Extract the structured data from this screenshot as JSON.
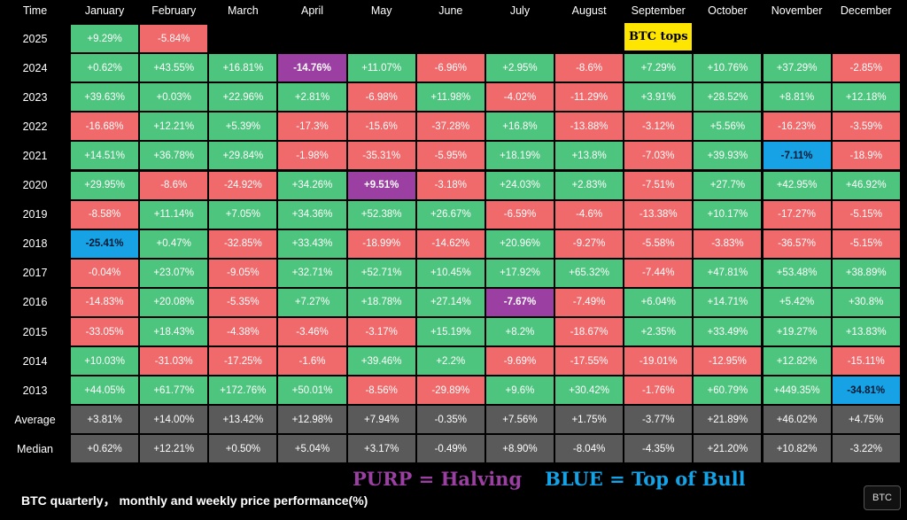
{
  "chart_data": {
    "type": "table",
    "title": "BTC quarterly， monthly and weekly price performance(%)",
    "corner_label": "Time",
    "columns": [
      "January",
      "February",
      "March",
      "April",
      "May",
      "June",
      "July",
      "August",
      "September",
      "October",
      "November",
      "December"
    ],
    "rows": [
      {
        "label": "2025",
        "cells": [
          {
            "v": "+9.29%"
          },
          {
            "v": "-5.84%"
          },
          null,
          null,
          null,
          null,
          null,
          null,
          null,
          null,
          null,
          null
        ]
      },
      {
        "label": "2024",
        "cells": [
          {
            "v": "+0.62%"
          },
          {
            "v": "+43.55%"
          },
          {
            "v": "+16.81%"
          },
          {
            "v": "-14.76%",
            "hl": "purple"
          },
          {
            "v": "+11.07%"
          },
          {
            "v": "-6.96%"
          },
          {
            "v": "+2.95%"
          },
          {
            "v": "-8.6%"
          },
          {
            "v": "+7.29%"
          },
          {
            "v": "+10.76%"
          },
          {
            "v": "+37.29%"
          },
          {
            "v": "-2.85%"
          }
        ]
      },
      {
        "label": "2023",
        "cells": [
          {
            "v": "+39.63%"
          },
          {
            "v": "+0.03%"
          },
          {
            "v": "+22.96%"
          },
          {
            "v": "+2.81%"
          },
          {
            "v": "-6.98%"
          },
          {
            "v": "+11.98%"
          },
          {
            "v": "-4.02%"
          },
          {
            "v": "-11.29%"
          },
          {
            "v": "+3.91%"
          },
          {
            "v": "+28.52%"
          },
          {
            "v": "+8.81%"
          },
          {
            "v": "+12.18%"
          }
        ]
      },
      {
        "label": "2022",
        "cells": [
          {
            "v": "-16.68%"
          },
          {
            "v": "+12.21%"
          },
          {
            "v": "+5.39%"
          },
          {
            "v": "-17.3%"
          },
          {
            "v": "-15.6%"
          },
          {
            "v": "-37.28%"
          },
          {
            "v": "+16.8%"
          },
          {
            "v": "-13.88%"
          },
          {
            "v": "-3.12%"
          },
          {
            "v": "+5.56%"
          },
          {
            "v": "-16.23%"
          },
          {
            "v": "-3.59%"
          }
        ]
      },
      {
        "label": "2021",
        "cells": [
          {
            "v": "+14.51%"
          },
          {
            "v": "+36.78%"
          },
          {
            "v": "+29.84%"
          },
          {
            "v": "-1.98%"
          },
          {
            "v": "-35.31%"
          },
          {
            "v": "-5.95%"
          },
          {
            "v": "+18.19%"
          },
          {
            "v": "+13.8%"
          },
          {
            "v": "-7.03%"
          },
          {
            "v": "+39.93%"
          },
          {
            "v": "-7.11%",
            "hl": "blue"
          },
          {
            "v": "-18.9%"
          }
        ]
      },
      {
        "label": "2020",
        "cells": [
          {
            "v": "+29.95%"
          },
          {
            "v": "-8.6%"
          },
          {
            "v": "-24.92%"
          },
          {
            "v": "+34.26%"
          },
          {
            "v": "+9.51%",
            "hl": "purple"
          },
          {
            "v": "-3.18%"
          },
          {
            "v": "+24.03%"
          },
          {
            "v": "+2.83%"
          },
          {
            "v": "-7.51%"
          },
          {
            "v": "+27.7%"
          },
          {
            "v": "+42.95%"
          },
          {
            "v": "+46.92%"
          }
        ]
      },
      {
        "label": "2019",
        "cells": [
          {
            "v": "-8.58%"
          },
          {
            "v": "+11.14%"
          },
          {
            "v": "+7.05%"
          },
          {
            "v": "+34.36%"
          },
          {
            "v": "+52.38%"
          },
          {
            "v": "+26.67%"
          },
          {
            "v": "-6.59%"
          },
          {
            "v": "-4.6%"
          },
          {
            "v": "-13.38%"
          },
          {
            "v": "+10.17%"
          },
          {
            "v": "-17.27%"
          },
          {
            "v": "-5.15%"
          }
        ]
      },
      {
        "label": "2018",
        "cells": [
          {
            "v": "-25.41%",
            "hl": "blue"
          },
          {
            "v": "+0.47%"
          },
          {
            "v": "-32.85%"
          },
          {
            "v": "+33.43%"
          },
          {
            "v": "-18.99%"
          },
          {
            "v": "-14.62%"
          },
          {
            "v": "+20.96%"
          },
          {
            "v": "-9.27%"
          },
          {
            "v": "-5.58%"
          },
          {
            "v": "-3.83%"
          },
          {
            "v": "-36.57%"
          },
          {
            "v": "-5.15%"
          }
        ]
      },
      {
        "label": "2017",
        "cells": [
          {
            "v": "-0.04%"
          },
          {
            "v": "+23.07%"
          },
          {
            "v": "-9.05%"
          },
          {
            "v": "+32.71%"
          },
          {
            "v": "+52.71%"
          },
          {
            "v": "+10.45%"
          },
          {
            "v": "+17.92%"
          },
          {
            "v": "+65.32%"
          },
          {
            "v": "-7.44%"
          },
          {
            "v": "+47.81%"
          },
          {
            "v": "+53.48%"
          },
          {
            "v": "+38.89%"
          }
        ]
      },
      {
        "label": "2016",
        "cells": [
          {
            "v": "-14.83%"
          },
          {
            "v": "+20.08%"
          },
          {
            "v": "-5.35%"
          },
          {
            "v": "+7.27%"
          },
          {
            "v": "+18.78%"
          },
          {
            "v": "+27.14%"
          },
          {
            "v": "-7.67%",
            "hl": "purple"
          },
          {
            "v": "-7.49%"
          },
          {
            "v": "+6.04%"
          },
          {
            "v": "+14.71%"
          },
          {
            "v": "+5.42%"
          },
          {
            "v": "+30.8%"
          }
        ]
      },
      {
        "label": "2015",
        "cells": [
          {
            "v": "-33.05%"
          },
          {
            "v": "+18.43%"
          },
          {
            "v": "-4.38%"
          },
          {
            "v": "-3.46%"
          },
          {
            "v": "-3.17%"
          },
          {
            "v": "+15.19%"
          },
          {
            "v": "+8.2%"
          },
          {
            "v": "-18.67%"
          },
          {
            "v": "+2.35%"
          },
          {
            "v": "+33.49%"
          },
          {
            "v": "+19.27%"
          },
          {
            "v": "+13.83%"
          }
        ]
      },
      {
        "label": "2014",
        "cells": [
          {
            "v": "+10.03%"
          },
          {
            "v": "-31.03%"
          },
          {
            "v": "-17.25%"
          },
          {
            "v": "-1.6%"
          },
          {
            "v": "+39.46%"
          },
          {
            "v": "+2.2%"
          },
          {
            "v": "-9.69%"
          },
          {
            "v": "-17.55%"
          },
          {
            "v": "-19.01%"
          },
          {
            "v": "-12.95%"
          },
          {
            "v": "+12.82%"
          },
          {
            "v": "-15.11%"
          }
        ]
      },
      {
        "label": "2013",
        "cells": [
          {
            "v": "+44.05%"
          },
          {
            "v": "+61.77%"
          },
          {
            "v": "+172.76%"
          },
          {
            "v": "+50.01%"
          },
          {
            "v": "-8.56%"
          },
          {
            "v": "-29.89%"
          },
          {
            "v": "+9.6%"
          },
          {
            "v": "+30.42%"
          },
          {
            "v": "-1.76%"
          },
          {
            "v": "+60.79%"
          },
          {
            "v": "+449.35%"
          },
          {
            "v": "-34.81%",
            "hl": "blue"
          }
        ]
      }
    ],
    "summary_rows": [
      {
        "label": "Average",
        "values": [
          "+3.81%",
          "+14.00%",
          "+13.42%",
          "+12.98%",
          "+7.94%",
          "-0.35%",
          "+7.56%",
          "+1.75%",
          "-3.77%",
          "+21.89%",
          "+46.02%",
          "+4.75%"
        ]
      },
      {
        "label": "Median",
        "values": [
          "+0.62%",
          "+12.21%",
          "+0.50%",
          "+5.04%",
          "+3.17%",
          "-0.49%",
          "+8.90%",
          "-8.04%",
          "-4.35%",
          "+21.20%",
          "+10.82%",
          "-3.22%"
        ]
      }
    ],
    "annotation": {
      "text": "BTC tops",
      "row": "2025",
      "column": "September"
    },
    "legend": {
      "purple": "PURP = Halving",
      "blue": "BLUE = Top of Bull"
    }
  },
  "colors": {
    "positive": "#4dc57e",
    "negative": "#f0696b",
    "purple": "#9b3fa3",
    "blue": "#17a2e6",
    "summary": "#5a5a5a",
    "note": "#ffe600"
  },
  "caption": "BTC quarterly， monthly and weekly price performance(%)",
  "badge": "BTC"
}
